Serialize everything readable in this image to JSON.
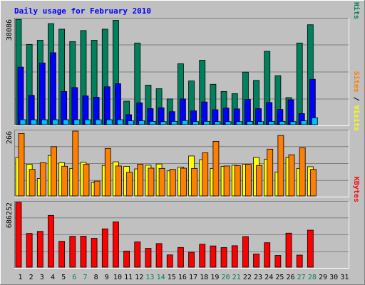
{
  "chart_data": {
    "type": "bar",
    "title": "Daily usage for February 2010",
    "categories": [
      "1",
      "2",
      "3",
      "4",
      "5",
      "6",
      "7",
      "8",
      "9",
      "10",
      "11",
      "12",
      "13",
      "14",
      "15",
      "16",
      "17",
      "18",
      "19",
      "20",
      "21",
      "22",
      "23",
      "24",
      "25",
      "26",
      "27",
      "28",
      "29",
      "30",
      "31"
    ],
    "weekend_days": [
      6,
      7,
      13,
      14,
      20,
      21,
      27,
      28
    ],
    "panels": [
      {
        "id": "hits-files-pages",
        "max_label": "38086",
        "ymax": 38086,
        "right_label_parts": [
          {
            "text": "Pages",
            "color": "#00c0ff"
          },
          {
            "text": " / ",
            "color": "#000000"
          },
          {
            "text": "Files",
            "color": "#0000ff"
          },
          {
            "text": " / ",
            "color": "#000000"
          },
          {
            "text": "Hits",
            "color": "#00805c"
          }
        ],
        "series": [
          {
            "name": "Hits",
            "color": "#00805c",
            "values": [
              38000,
              29000,
              30500,
              36500,
              34500,
              30000,
              34000,
              30500,
              34500,
              37700,
              8500,
              29500,
              14300,
              13000,
              9300,
              22000,
              15800,
              23300,
              14600,
              12000,
              11200,
              19000,
              16000,
              26500,
              17700,
              9800,
              29500,
              36100,
              0,
              0,
              0
            ]
          },
          {
            "name": "Files",
            "color": "#0000ff",
            "values": [
              20800,
              10600,
              22300,
              26000,
              12000,
              13400,
              10400,
              9900,
              13700,
              14800,
              3600,
              7900,
              5800,
              6100,
              4700,
              9300,
              5000,
              8200,
              5400,
              6000,
              5700,
              9100,
              5800,
              8000,
              5500,
              9000,
              4000,
              16400,
              0,
              0,
              0
            ]
          },
          {
            "name": "Pages",
            "color": "#00c0ff",
            "values": [
              1800,
              1800,
              1800,
              1800,
              1800,
              1800,
              1800,
              1800,
              1800,
              1800,
              1400,
              1400,
              1200,
              1100,
              1200,
              1500,
              1100,
              1200,
              1100,
              1100,
              1100,
              1200,
              1100,
              1200,
              1200,
              1100,
              1400,
              2500,
              0,
              0,
              0
            ]
          }
        ]
      },
      {
        "id": "visits-sites",
        "max_label": "266",
        "ymax": 266,
        "right_label_parts": [
          {
            "text": "Sites",
            "color": "#ff8000"
          },
          {
            "text": " / ",
            "color": "#000000"
          },
          {
            "text": "Visits",
            "color": "#ffff00"
          }
        ],
        "series": [
          {
            "name": "Visits",
            "color": "#ffff00",
            "values": [
              158,
              130,
              72,
              166,
              136,
              113,
              138,
              55,
              125,
              140,
              121,
              111,
              126,
              131,
              103,
              118,
              164,
              149,
              113,
              121,
              126,
              130,
              158,
              151,
              98,
              158,
              113,
              120,
              0,
              0,
              0
            ]
          },
          {
            "name": "Sites",
            "color": "#ff8000",
            "values": [
              256,
              109,
              136,
              202,
              122,
              266,
              130,
              61,
              195,
              123,
              97,
              130,
              114,
              113,
              109,
              114,
              113,
              177,
              224,
              123,
              125,
              130,
              125,
              192,
              248,
              169,
              198,
              109,
              0,
              0,
              0
            ]
          }
        ]
      },
      {
        "id": "kbytes",
        "max_label": "686252",
        "ymax": 686252,
        "right_label_parts": [
          {
            "text": "KBytes",
            "color": "#ff0000"
          }
        ],
        "series": [
          {
            "name": "KBytes",
            "color": "#ff0000",
            "values": [
              686252,
              357000,
              379000,
              548000,
              274000,
              327000,
              328000,
              305000,
              406000,
              480000,
              171000,
              268000,
              199000,
              250000,
              130000,
              209000,
              158000,
              243000,
              225000,
              208000,
              227000,
              324000,
              140000,
              259000,
              124000,
              360000,
              128000,
              392000,
              0,
              0,
              0
            ]
          }
        ]
      }
    ]
  }
}
